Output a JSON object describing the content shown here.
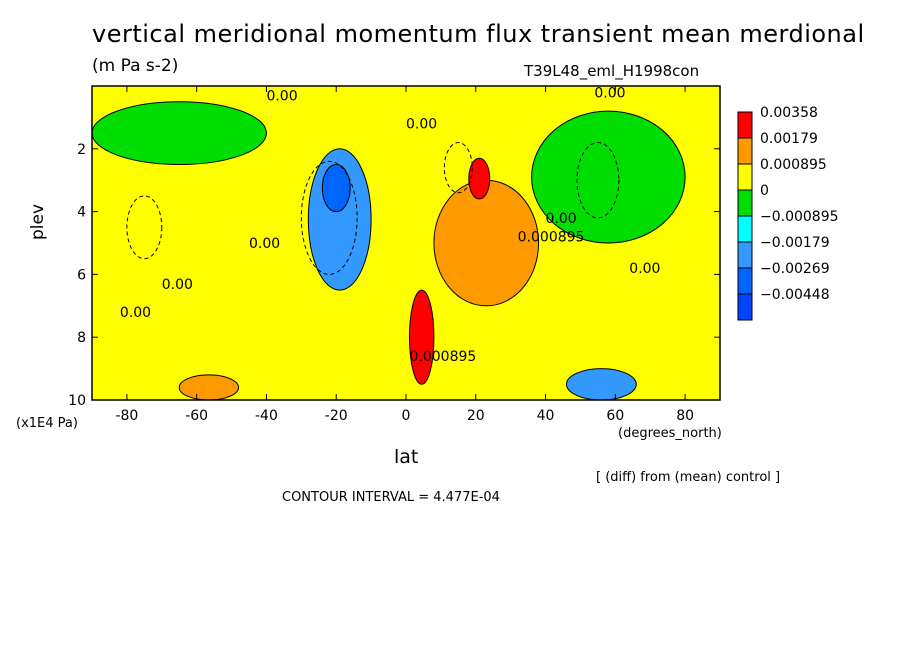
{
  "chart_data": {
    "type": "heatmap",
    "title": "vertical meridional momentum flux transient mean merdional",
    "units": "(m Pa s-2)",
    "run_label": "T39L48_eml_H1998con",
    "xlabel": "lat",
    "ylabel": "plev",
    "x_unit_label": "(degrees_north)",
    "y_unit_label": "(x1E4 Pa)",
    "xlim": [
      -90,
      90
    ],
    "ylim": [
      10,
      0
    ],
    "x_ticks": [
      "-80",
      "-60",
      "-40",
      "-20",
      "0",
      "20",
      "40",
      "60",
      "80"
    ],
    "y_ticks": [
      "2",
      "4",
      "6",
      "8",
      "10"
    ],
    "footer_diff": "[ (diff) from (mean) control ]",
    "contour_interval": "CONTOUR INTERVAL = 4.477E-04",
    "contour_labels": [
      "0.00",
      "0.00",
      "0.00",
      "0.00",
      "0.00",
      "0.00",
      "0.000895",
      "0.000895",
      "0.00",
      "0.00"
    ],
    "colorbar": {
      "levels": [
        "0.00358",
        "0.00179",
        "0.000895",
        "0",
        "−0.000895",
        "−0.00179",
        "−0.00269",
        "−0.00448"
      ],
      "colors": [
        "#ff0000",
        "#ff9900",
        "#ffff00",
        "#00dd00",
        "#00ffff",
        "#3399ff",
        "#0066ff",
        "#0044ff"
      ]
    },
    "regions": [
      {
        "name": "green-south-upper",
        "lat": [
          -90,
          -40
        ],
        "p": [
          0.5,
          2.5
        ],
        "class": 3
      },
      {
        "name": "cyan-south-tropics",
        "lat": [
          -28,
          -10
        ],
        "p": [
          2.0,
          6.5
        ],
        "class": 5
      },
      {
        "name": "blue-south-core",
        "lat": [
          -24,
          -16
        ],
        "p": [
          2.5,
          4.0
        ],
        "class": 6
      },
      {
        "name": "orange-north-sub",
        "lat": [
          8,
          38
        ],
        "p": [
          3.0,
          7.0
        ],
        "class": 1
      },
      {
        "name": "red-north-jet",
        "lat": [
          18,
          24
        ],
        "p": [
          2.3,
          3.6
        ],
        "class": 0
      },
      {
        "name": "red-equator",
        "lat": [
          1,
          8
        ],
        "p": [
          6.5,
          9.5
        ],
        "class": 0
      },
      {
        "name": "cyan-north-surface",
        "lat": [
          46,
          66
        ],
        "p": [
          9.0,
          10.0
        ],
        "class": 5
      },
      {
        "name": "orange-south-surface",
        "lat": [
          -65,
          -48
        ],
        "p": [
          9.2,
          10.0
        ],
        "class": 1
      },
      {
        "name": "green-north-upper",
        "lat": [
          36,
          80
        ],
        "p": [
          0.8,
          5.0
        ],
        "class": 3
      }
    ]
  }
}
